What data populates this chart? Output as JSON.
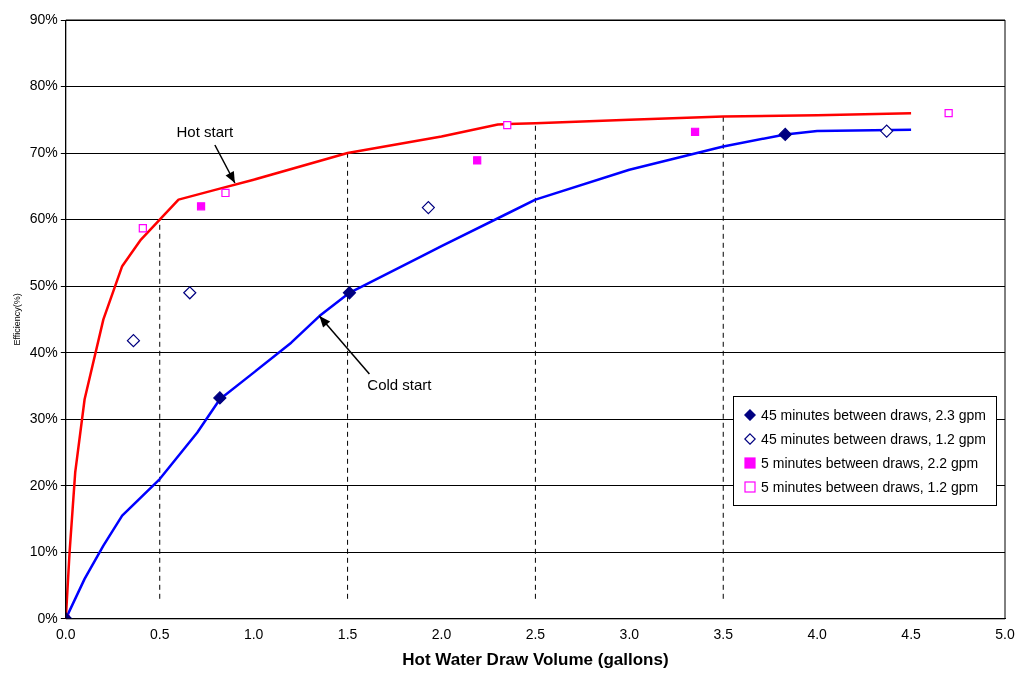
{
  "chart_data": {
    "type": "scatter",
    "xlabel": "Hot Water Draw Volume (gallons)",
    "ylabel": "Efficiency(%)",
    "xlim": [
      0,
      5
    ],
    "xticks": [
      {
        "value": 0,
        "label": "0.0"
      },
      {
        "value": 0.5,
        "label": "0.5"
      },
      {
        "value": 1,
        "label": "1.0"
      },
      {
        "value": 1.5,
        "label": "1.5"
      },
      {
        "value": 2,
        "label": "2.0"
      },
      {
        "value": 2.5,
        "label": "2.5"
      },
      {
        "value": 3,
        "label": "3.0"
      },
      {
        "value": 3.5,
        "label": "3.5"
      },
      {
        "value": 4,
        "label": "4.0"
      },
      {
        "value": 4.5,
        "label": "4.5"
      },
      {
        "value": 5,
        "label": "5.0"
      }
    ],
    "ylim": [
      0,
      90
    ],
    "yticks": [
      {
        "value": 0,
        "label": "0%"
      },
      {
        "value": 10,
        "label": "10%"
      },
      {
        "value": 20,
        "label": "20%"
      },
      {
        "value": 30,
        "label": "30%"
      },
      {
        "value": 40,
        "label": "40%"
      },
      {
        "value": 50,
        "label": "50%"
      },
      {
        "value": 60,
        "label": "60%"
      },
      {
        "value": 70,
        "label": "70%"
      },
      {
        "value": 80,
        "label": "80%"
      },
      {
        "value": 90,
        "label": "90%"
      }
    ],
    "grid": "y",
    "legend": "right",
    "series": [
      {
        "type": "line",
        "color": "#ff0000",
        "marker": "none",
        "x": [
          0,
          0.02,
          0.05,
          0.1,
          0.2,
          0.3,
          0.4,
          0.5,
          0.6,
          0.8,
          1,
          1.5,
          2,
          2.3,
          2.5,
          3,
          3.5,
          4,
          4.5
        ],
        "values": [
          0,
          10,
          22,
          33,
          45,
          53,
          57,
          60,
          63,
          64.5,
          66,
          70,
          72.5,
          74.3,
          74.5,
          75,
          75.5,
          75.7,
          76
        ]
      },
      {
        "type": "line",
        "color": "#0000ff",
        "marker": "none",
        "x": [
          0,
          0.1,
          0.2,
          0.3,
          0.5,
          0.7,
          0.82,
          1,
          1.2,
          1.35,
          1.51,
          2,
          2.5,
          3,
          3.5,
          3.83,
          4,
          4.5
        ],
        "values": [
          0,
          6,
          11,
          15.5,
          21,
          28,
          33,
          37,
          41.5,
          45.5,
          49,
          56,
          63,
          67.5,
          71,
          72.8,
          73.3,
          73.5
        ]
      },
      {
        "name": "45 minutes between draws, 2.3 gpm",
        "color": "#000080",
        "marker": "diamond",
        "x": [
          0,
          0.82,
          1.51,
          3.83
        ],
        "values": [
          0,
          33.2,
          49,
          72.8
        ]
      },
      {
        "name": "45 minutes between draws, 1.2 gpm",
        "color": "#000080",
        "marker": "diamond-open",
        "x": [
          0.36,
          0.66,
          1.93,
          4.37
        ],
        "values": [
          41.8,
          49,
          61.8,
          73.3
        ]
      },
      {
        "name": "5 minutes between draws, 2.2 gpm",
        "color": "#ff00ff",
        "marker": "square",
        "x": [
          0,
          0.72,
          2.19,
          3.35
        ],
        "values": [
          0,
          62,
          68.9,
          73.2
        ]
      },
      {
        "name": "5 minutes between draws, 1.2 gpm",
        "color": "#ff00ff",
        "marker": "square-open",
        "x": [
          0.41,
          0.85,
          2.35,
          4.7
        ],
        "values": [
          58.7,
          64,
          74.2,
          76
        ]
      }
    ],
    "ref_lines": [
      {
        "axis": "x",
        "value": 0.5,
        "line_style": "dashed"
      },
      {
        "axis": "x",
        "value": 1.5,
        "line_style": "dashed"
      },
      {
        "axis": "x",
        "value": 2.5,
        "line_style": "dashed"
      },
      {
        "axis": "x",
        "value": 3.5,
        "line_style": "dashed"
      }
    ],
    "annotations": [
      {
        "text": "Hot start",
        "x": 0.9,
        "y": 65.5
      },
      {
        "text": "Cold start",
        "x": 1.35,
        "y": 45.5
      }
    ]
  }
}
